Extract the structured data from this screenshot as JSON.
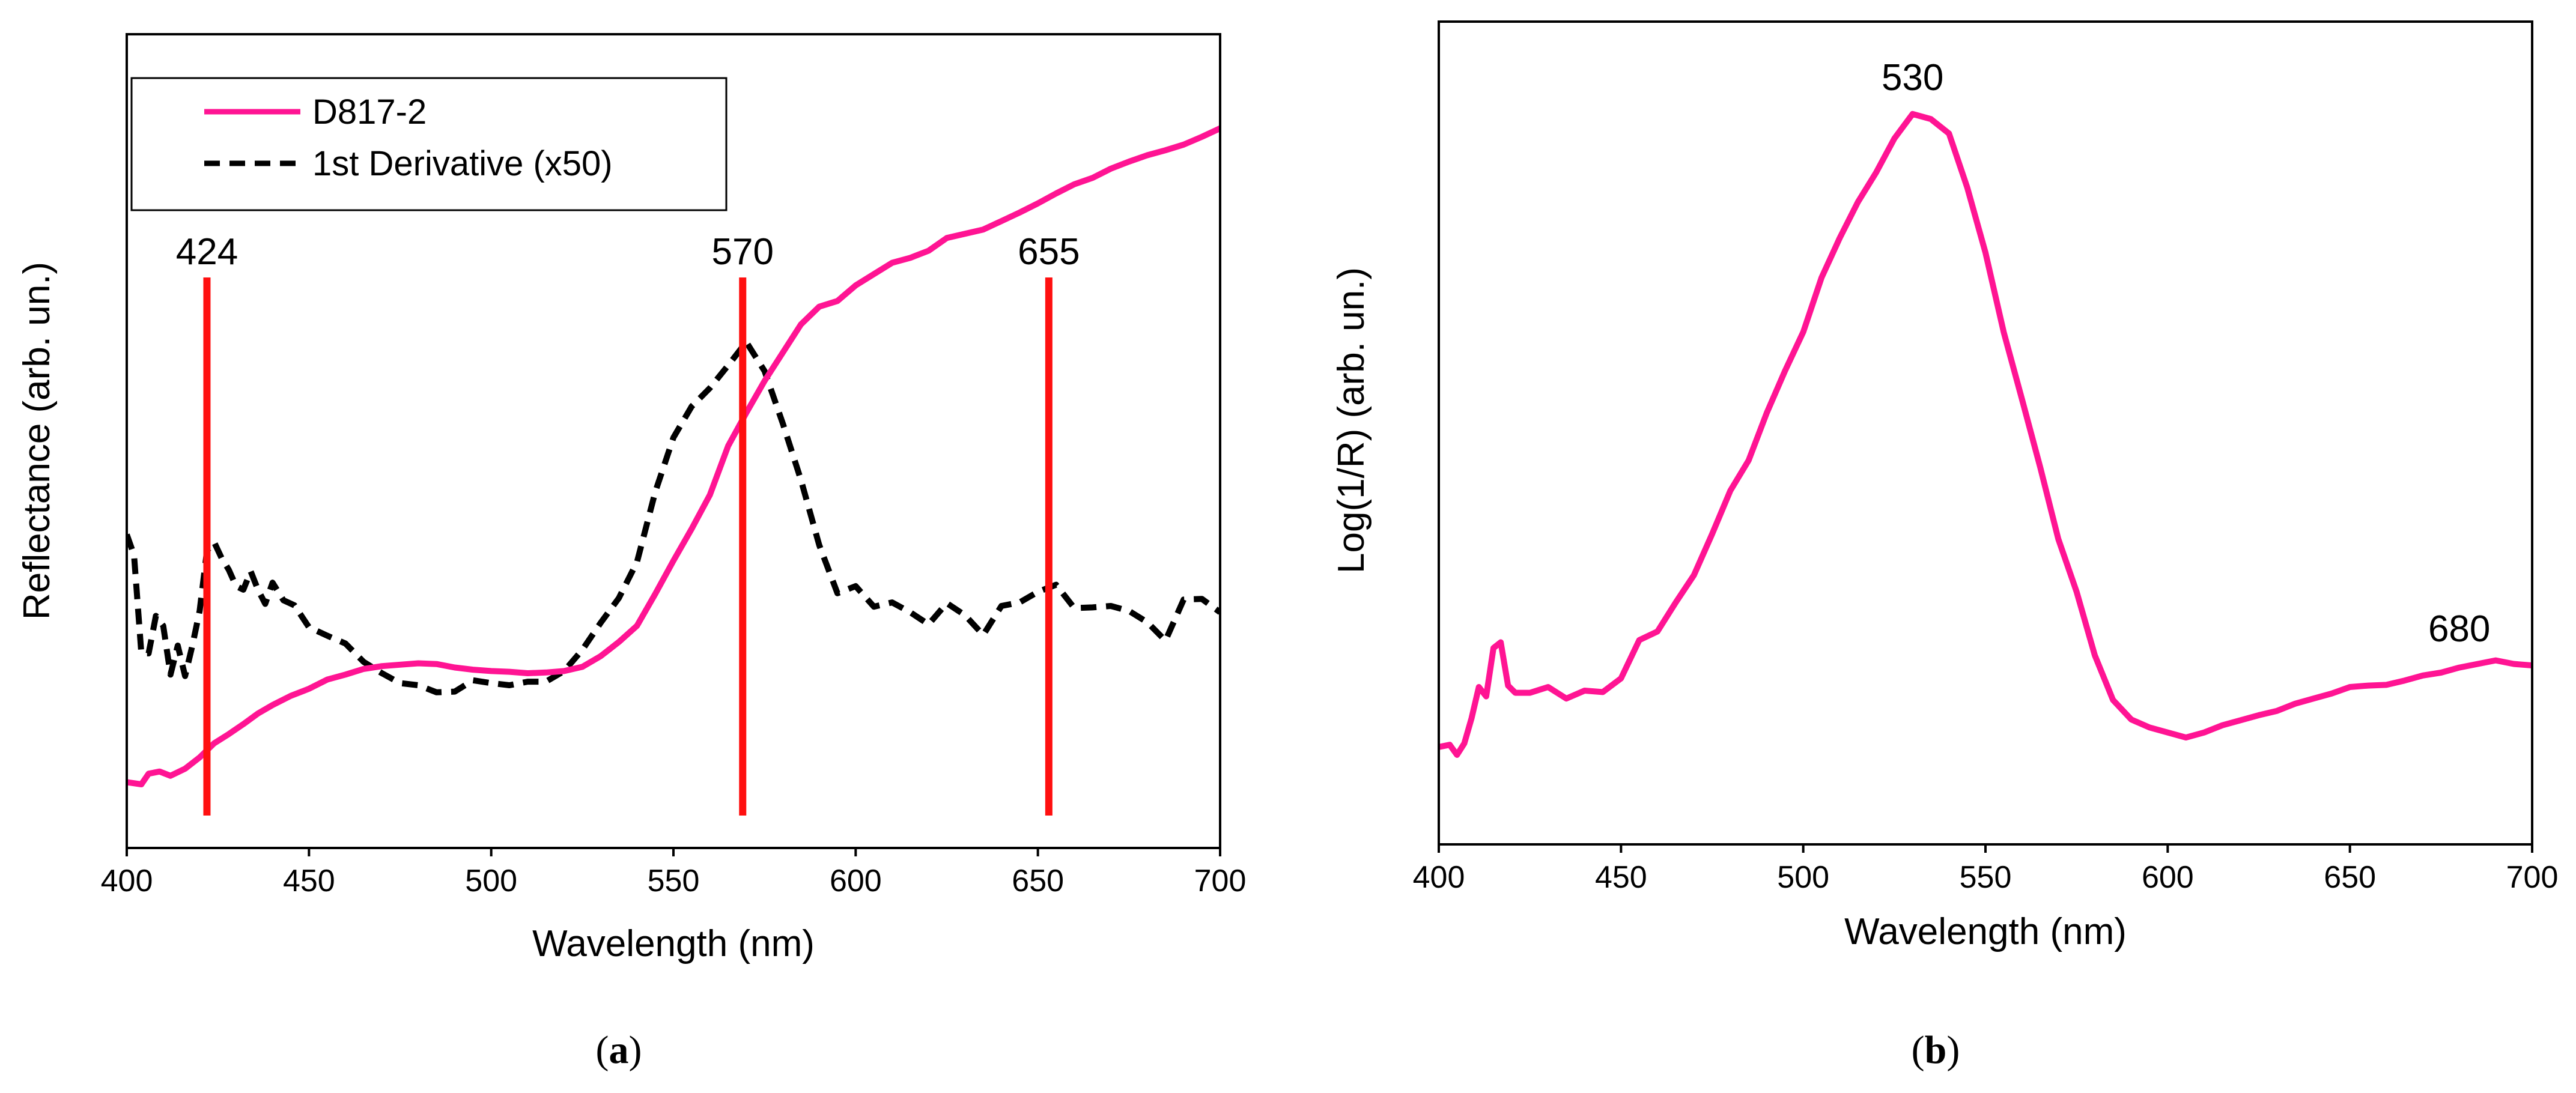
{
  "colors": {
    "reflectance": "#ff1493",
    "derivative": "#000000",
    "marker": "#ff1010",
    "axis": "#000000"
  },
  "chart_data": [
    {
      "type": "line",
      "panel_label_open": "(",
      "panel_label_letter": "a",
      "panel_label_close": ")",
      "xlabel": "Wavelength (nm)",
      "ylabel": "Reflectance (arb. un.)",
      "xlim": [
        400,
        700
      ],
      "ylim": [
        0,
        1
      ],
      "x_ticks": [
        "400",
        "450",
        "500",
        "550",
        "600",
        "650",
        "700"
      ],
      "legend": {
        "position": "top-left",
        "entries": [
          {
            "label": "D817-2",
            "style": "solid"
          },
          {
            "label": "1st Derivative (x50)",
            "style": "dashed"
          }
        ]
      },
      "markers": [
        {
          "x": 422,
          "label": "424"
        },
        {
          "x": 569,
          "label": "570"
        },
        {
          "x": 653,
          "label": "655"
        }
      ],
      "series": [
        {
          "name": "D817-2",
          "style": "solid",
          "x": [
            400,
            404,
            406,
            409,
            412,
            416,
            420,
            424,
            428,
            432,
            436,
            440,
            445,
            450,
            455,
            460,
            465,
            470,
            475,
            480,
            485,
            490,
            495,
            500,
            505,
            510,
            515,
            520,
            525,
            530,
            535,
            540,
            545,
            550,
            555,
            560,
            565,
            570,
            575,
            580,
            585,
            590,
            595,
            600,
            605,
            610,
            615,
            620,
            625,
            630,
            635,
            640,
            645,
            650,
            655,
            660,
            665,
            670,
            675,
            680,
            685,
            690,
            695,
            700
          ],
          "y": [
            0.043,
            0.04,
            0.055,
            0.058,
            0.052,
            0.062,
            0.078,
            0.098,
            0.111,
            0.125,
            0.14,
            0.152,
            0.165,
            0.175,
            0.188,
            0.195,
            0.203,
            0.207,
            0.209,
            0.211,
            0.21,
            0.205,
            0.202,
            0.2,
            0.199,
            0.197,
            0.198,
            0.2,
            0.206,
            0.221,
            0.241,
            0.264,
            0.309,
            0.356,
            0.401,
            0.449,
            0.518,
            0.565,
            0.61,
            0.65,
            0.69,
            0.715,
            0.723,
            0.745,
            0.761,
            0.777,
            0.784,
            0.794,
            0.812,
            0.818,
            0.824,
            0.836,
            0.848,
            0.861,
            0.875,
            0.888,
            0.897,
            0.91,
            0.92,
            0.929,
            0.936,
            0.944,
            0.955,
            0.967
          ]
        },
        {
          "name": "1st Derivative (x50)",
          "style": "dashed",
          "x": [
            400,
            402,
            404,
            406,
            408,
            410,
            412,
            414,
            416,
            418,
            420,
            422,
            424,
            426,
            428,
            430,
            432,
            434,
            436,
            438,
            440,
            443,
            446,
            450,
            455,
            460,
            465,
            470,
            475,
            480,
            485,
            490,
            495,
            500,
            505,
            510,
            515,
            520,
            525,
            530,
            535,
            540,
            545,
            550,
            555,
            560,
            565,
            570,
            575,
            580,
            585,
            590,
            595,
            600,
            605,
            610,
            615,
            620,
            625,
            630,
            635,
            640,
            645,
            650,
            655,
            660,
            665,
            670,
            675,
            680,
            685,
            690,
            695,
            700
          ],
          "y": [
            0.393,
            0.364,
            0.225,
            0.225,
            0.278,
            0.264,
            0.195,
            0.236,
            0.193,
            0.236,
            0.285,
            0.37,
            0.382,
            0.36,
            0.343,
            0.32,
            0.315,
            0.341,
            0.315,
            0.295,
            0.325,
            0.3,
            0.293,
            0.262,
            0.25,
            0.239,
            0.213,
            0.197,
            0.183,
            0.18,
            0.17,
            0.171,
            0.187,
            0.183,
            0.18,
            0.185,
            0.185,
            0.2,
            0.23,
            0.268,
            0.303,
            0.354,
            0.453,
            0.53,
            0.574,
            0.6,
            0.632,
            0.665,
            0.624,
            0.55,
            0.47,
            0.378,
            0.31,
            0.32,
            0.291,
            0.297,
            0.283,
            0.266,
            0.296,
            0.279,
            0.251,
            0.292,
            0.297,
            0.312,
            0.322,
            0.289,
            0.29,
            0.292,
            0.285,
            0.269,
            0.243,
            0.301,
            0.302,
            0.283
          ]
        }
      ]
    },
    {
      "type": "line",
      "panel_label_open": "(",
      "panel_label_letter": "b",
      "panel_label_close": ")",
      "xlabel": "Wavelength (nm)",
      "ylabel": "Log(1/R) (arb. un.)",
      "xlim": [
        400,
        700
      ],
      "ylim": [
        0,
        1
      ],
      "x_ticks": [
        "400",
        "450",
        "500",
        "550",
        "600",
        "650",
        "700"
      ],
      "annotations": [
        {
          "x": 530,
          "label": "530"
        },
        {
          "x": 680,
          "label": "680"
        }
      ],
      "series": [
        {
          "name": "Log(1/R)",
          "style": "solid",
          "x": [
            400,
            403,
            405,
            407,
            409,
            411,
            413,
            415,
            417,
            419,
            421,
            425,
            430,
            435,
            440,
            445,
            450,
            455,
            460,
            465,
            470,
            475,
            480,
            485,
            490,
            495,
            500,
            505,
            510,
            515,
            520,
            525,
            530,
            535,
            540,
            545,
            550,
            555,
            560,
            565,
            570,
            575,
            580,
            585,
            590,
            595,
            600,
            605,
            610,
            615,
            620,
            625,
            630,
            635,
            640,
            645,
            650,
            655,
            660,
            665,
            670,
            675,
            680,
            685,
            690,
            695,
            700
          ],
          "y": [
            0.055,
            0.058,
            0.044,
            0.06,
            0.095,
            0.138,
            0.125,
            0.192,
            0.2,
            0.14,
            0.13,
            0.13,
            0.138,
            0.122,
            0.133,
            0.131,
            0.15,
            0.203,
            0.215,
            0.255,
            0.293,
            0.35,
            0.41,
            0.452,
            0.518,
            0.576,
            0.63,
            0.705,
            0.76,
            0.81,
            0.851,
            0.898,
            0.932,
            0.925,
            0.905,
            0.83,
            0.74,
            0.63,
            0.537,
            0.443,
            0.343,
            0.27,
            0.182,
            0.12,
            0.093,
            0.082,
            0.075,
            0.068,
            0.075,
            0.085,
            0.092,
            0.099,
            0.105,
            0.115,
            0.122,
            0.129,
            0.138,
            0.14,
            0.141,
            0.147,
            0.154,
            0.158,
            0.165,
            0.17,
            0.175,
            0.17,
            0.168
          ]
        }
      ]
    }
  ]
}
